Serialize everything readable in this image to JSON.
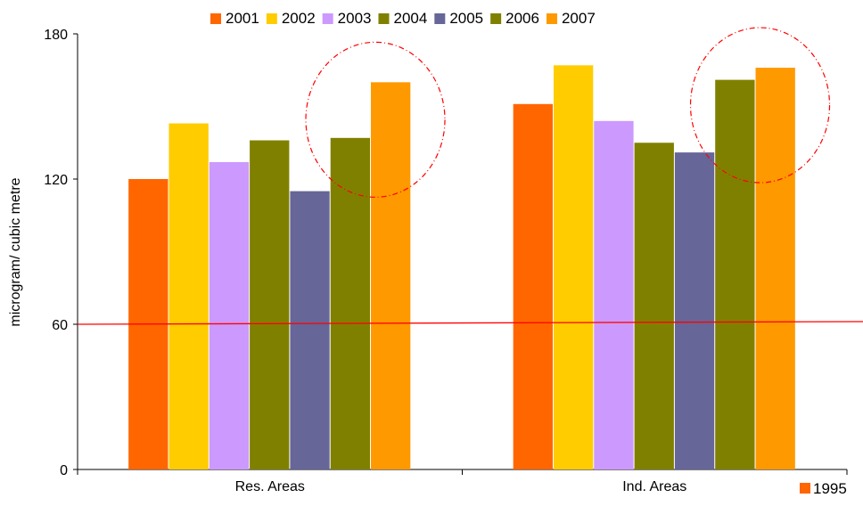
{
  "chart_data": {
    "type": "bar",
    "categories": [
      "Res. Areas",
      "Ind. Areas"
    ],
    "series": [
      {
        "name": "2001",
        "color": "#FF6600",
        "values": [
          120,
          151
        ]
      },
      {
        "name": "2002",
        "color": "#FFCC00",
        "values": [
          143,
          167
        ]
      },
      {
        "name": "2003",
        "color": "#CC99FF",
        "values": [
          127,
          144
        ]
      },
      {
        "name": "2004",
        "color": "#808000",
        "values": [
          136,
          135
        ]
      },
      {
        "name": "2005",
        "color": "#666699",
        "values": [
          115,
          131
        ]
      },
      {
        "name": "2006",
        "color": "#808000",
        "values": [
          137,
          161
        ]
      },
      {
        "name": "2007",
        "color": "#FF9900",
        "values": [
          160,
          166
        ]
      }
    ],
    "extra_legend": {
      "name": "1995",
      "color": "#FF6600"
    },
    "ylabel": "microgram/ cubic metre",
    "xlabel": "",
    "ylim": [
      0,
      180
    ],
    "yticks": [
      "0",
      "60",
      "120",
      "180"
    ],
    "reference_line": {
      "value": 60,
      "color": "#FF0000"
    },
    "highlight_circles": [
      {
        "category": "Res. Areas",
        "series": [
          "2006",
          "2007"
        ],
        "color": "#FF0000"
      },
      {
        "category": "Ind. Areas",
        "series": [
          "2006",
          "2007"
        ],
        "color": "#FF0000"
      }
    ],
    "legend_position": "top",
    "grid": false
  }
}
